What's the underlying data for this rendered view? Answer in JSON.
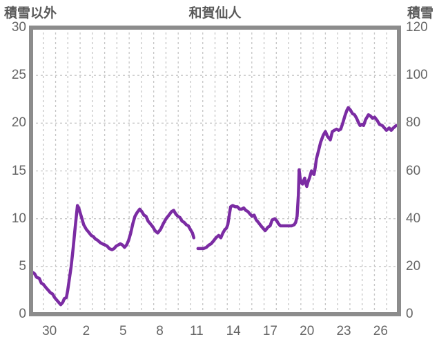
{
  "title": "和賀仙人",
  "left_axis": {
    "label": "積雪以外",
    "ticks": [
      30,
      25,
      20,
      15,
      10,
      5,
      0
    ],
    "min": 0,
    "max": 30
  },
  "right_axis": {
    "label": "積雪",
    "ticks": [
      120,
      100,
      80,
      60,
      40,
      20,
      0
    ],
    "min": 0,
    "max": 120
  },
  "x_axis": {
    "labels": [
      "30",
      "2",
      "5",
      "8",
      "11",
      "14",
      "17",
      "20",
      "23",
      "26"
    ],
    "label_day_offsets": [
      1.5,
      4.5,
      7.5,
      10.5,
      13.5,
      16.5,
      19.5,
      22.5,
      25.5,
      28.5
    ],
    "span_days": 30,
    "gridline_every_days": 1
  },
  "colors": {
    "line": "#7b2ca3",
    "frame": "#8c8c8c",
    "grid": "#c6c6c6",
    "text": "#666666",
    "title_text": "#595959"
  },
  "chart_data": {
    "type": "line",
    "title": "和賀仙人",
    "ylabel_left": "積雪以外",
    "ylabel_right": "積雪",
    "ylim_left": [
      0,
      30
    ],
    "ylim_right": [
      0,
      120
    ],
    "grid": true,
    "legend": false,
    "series": [
      {
        "name": "積雪",
        "axis": "right",
        "unit": "cm",
        "color": "#7b2ca3",
        "x_unit": "days_from_plot_left_edge (left edge = day 29 00:00)",
        "segments": [
          [
            [
              0.0,
              18
            ],
            [
              0.28,
              17
            ],
            [
              0.45,
              15.5
            ],
            [
              0.67,
              15
            ],
            [
              0.84,
              13
            ],
            [
              1.01,
              12.5
            ],
            [
              1.24,
              11
            ],
            [
              1.41,
              10
            ],
            [
              1.58,
              9
            ],
            [
              1.75,
              8.5
            ],
            [
              1.92,
              7
            ],
            [
              2.08,
              6
            ],
            [
              2.25,
              5
            ],
            [
              2.42,
              4
            ],
            [
              2.59,
              5
            ],
            [
              2.71,
              6.5
            ],
            [
              2.88,
              7
            ],
            [
              2.99,
              10
            ],
            [
              3.1,
              14
            ],
            [
              3.27,
              20
            ],
            [
              3.44,
              28
            ],
            [
              3.55,
              34
            ],
            [
              3.67,
              40
            ],
            [
              3.78,
              45.5
            ],
            [
              3.89,
              44.5
            ],
            [
              4.0,
              42.5
            ],
            [
              4.12,
              40.5
            ],
            [
              4.29,
              37.5
            ],
            [
              4.51,
              35.5
            ],
            [
              4.68,
              34.5
            ],
            [
              4.91,
              33
            ],
            [
              5.08,
              32.5
            ],
            [
              5.25,
              31.5
            ],
            [
              5.42,
              31
            ],
            [
              5.64,
              30
            ],
            [
              5.81,
              29.5
            ],
            [
              6.04,
              29
            ],
            [
              6.21,
              28.5
            ],
            [
              6.38,
              27.5
            ],
            [
              6.6,
              27
            ],
            [
              6.77,
              27.5
            ],
            [
              6.94,
              28.5
            ],
            [
              7.11,
              29
            ],
            [
              7.28,
              29.5
            ],
            [
              7.45,
              29
            ],
            [
              7.62,
              28
            ],
            [
              7.79,
              29
            ],
            [
              7.96,
              31
            ],
            [
              8.13,
              34
            ],
            [
              8.3,
              38
            ],
            [
              8.47,
              41
            ],
            [
              8.64,
              42.5
            ],
            [
              8.86,
              44
            ],
            [
              9.03,
              43
            ],
            [
              9.2,
              41.5
            ],
            [
              9.37,
              41
            ],
            [
              9.54,
              39
            ],
            [
              9.71,
              38
            ],
            [
              9.94,
              36.5
            ],
            [
              10.11,
              35
            ],
            [
              10.33,
              34
            ],
            [
              10.56,
              35.5
            ],
            [
              10.79,
              38
            ],
            [
              11.01,
              40
            ],
            [
              11.24,
              41.5
            ],
            [
              11.46,
              43
            ],
            [
              11.63,
              43.5
            ],
            [
              11.8,
              42
            ],
            [
              11.97,
              41
            ],
            [
              12.14,
              40.5
            ],
            [
              12.31,
              39
            ],
            [
              12.48,
              38.5
            ],
            [
              12.65,
              37.5
            ],
            [
              12.82,
              37
            ],
            [
              12.99,
              35.5
            ],
            [
              13.16,
              34
            ],
            [
              13.27,
              32
            ]
          ],
          [
            [
              13.61,
              27.5
            ],
            [
              13.84,
              27.5
            ],
            [
              14.06,
              27.5
            ],
            [
              14.29,
              28
            ],
            [
              14.51,
              29
            ],
            [
              14.68,
              29.5
            ],
            [
              14.85,
              30.5
            ],
            [
              15.08,
              32
            ],
            [
              15.3,
              33
            ],
            [
              15.47,
              32
            ],
            [
              15.64,
              34
            ],
            [
              15.81,
              35.5
            ],
            [
              15.93,
              36
            ],
            [
              16.04,
              37.5
            ],
            [
              16.15,
              41
            ],
            [
              16.27,
              45
            ],
            [
              16.44,
              45.5
            ],
            [
              16.66,
              45
            ],
            [
              16.83,
              45
            ],
            [
              17.0,
              44
            ],
            [
              17.17,
              44
            ],
            [
              17.34,
              44.5
            ],
            [
              17.51,
              43.5
            ],
            [
              17.68,
              43
            ],
            [
              17.85,
              42
            ],
            [
              18.02,
              41
            ],
            [
              18.19,
              41.5
            ],
            [
              18.36,
              39.5
            ],
            [
              18.53,
              38.5
            ],
            [
              18.75,
              37
            ],
            [
              18.92,
              36
            ],
            [
              19.09,
              35
            ],
            [
              19.32,
              36.5
            ],
            [
              19.49,
              37
            ],
            [
              19.66,
              39.5
            ],
            [
              19.88,
              40
            ],
            [
              20.05,
              39
            ],
            [
              20.16,
              38
            ],
            [
              20.33,
              37
            ],
            [
              20.56,
              37
            ],
            [
              20.79,
              37
            ],
            [
              21.01,
              37
            ],
            [
              21.24,
              37
            ],
            [
              21.46,
              37.5
            ],
            [
              21.58,
              38.5
            ],
            [
              21.69,
              41
            ],
            [
              21.8,
              50
            ],
            [
              21.86,
              60.5
            ],
            [
              21.94,
              57
            ],
            [
              22.03,
              55
            ],
            [
              22.14,
              54.5
            ],
            [
              22.2,
              55.5
            ],
            [
              22.31,
              57
            ],
            [
              22.39,
              55
            ],
            [
              22.48,
              53.5
            ],
            [
              22.59,
              55.5
            ],
            [
              22.7,
              57
            ],
            [
              22.87,
              60
            ],
            [
              22.99,
              59
            ],
            [
              23.07,
              58.5
            ],
            [
              23.16,
              61
            ],
            [
              23.27,
              65
            ],
            [
              23.44,
              68.5
            ],
            [
              23.61,
              72
            ],
            [
              23.83,
              75
            ],
            [
              24.0,
              76.5
            ],
            [
              24.17,
              74.5
            ],
            [
              24.4,
              73
            ],
            [
              24.57,
              76.5
            ],
            [
              24.74,
              77
            ],
            [
              24.91,
              77.5
            ],
            [
              25.08,
              77
            ],
            [
              25.25,
              77.5
            ],
            [
              25.42,
              80
            ],
            [
              25.59,
              83
            ],
            [
              25.76,
              85.5
            ],
            [
              25.87,
              86.5
            ],
            [
              26.04,
              85.5
            ],
            [
              26.21,
              84
            ],
            [
              26.38,
              83.5
            ],
            [
              26.55,
              82
            ],
            [
              26.72,
              80
            ],
            [
              26.83,
              79
            ],
            [
              27.0,
              79.5
            ],
            [
              27.11,
              79
            ],
            [
              27.28,
              81.5
            ],
            [
              27.51,
              83.5
            ],
            [
              27.68,
              83
            ],
            [
              27.85,
              82
            ],
            [
              28.02,
              82.5
            ],
            [
              28.24,
              81
            ],
            [
              28.41,
              79.5
            ],
            [
              28.64,
              79
            ],
            [
              28.81,
              78
            ],
            [
              28.98,
              77
            ],
            [
              29.2,
              78
            ],
            [
              29.37,
              77
            ],
            [
              29.54,
              78
            ],
            [
              29.77,
              79
            ],
            [
              29.94,
              79
            ]
          ]
        ]
      }
    ]
  }
}
